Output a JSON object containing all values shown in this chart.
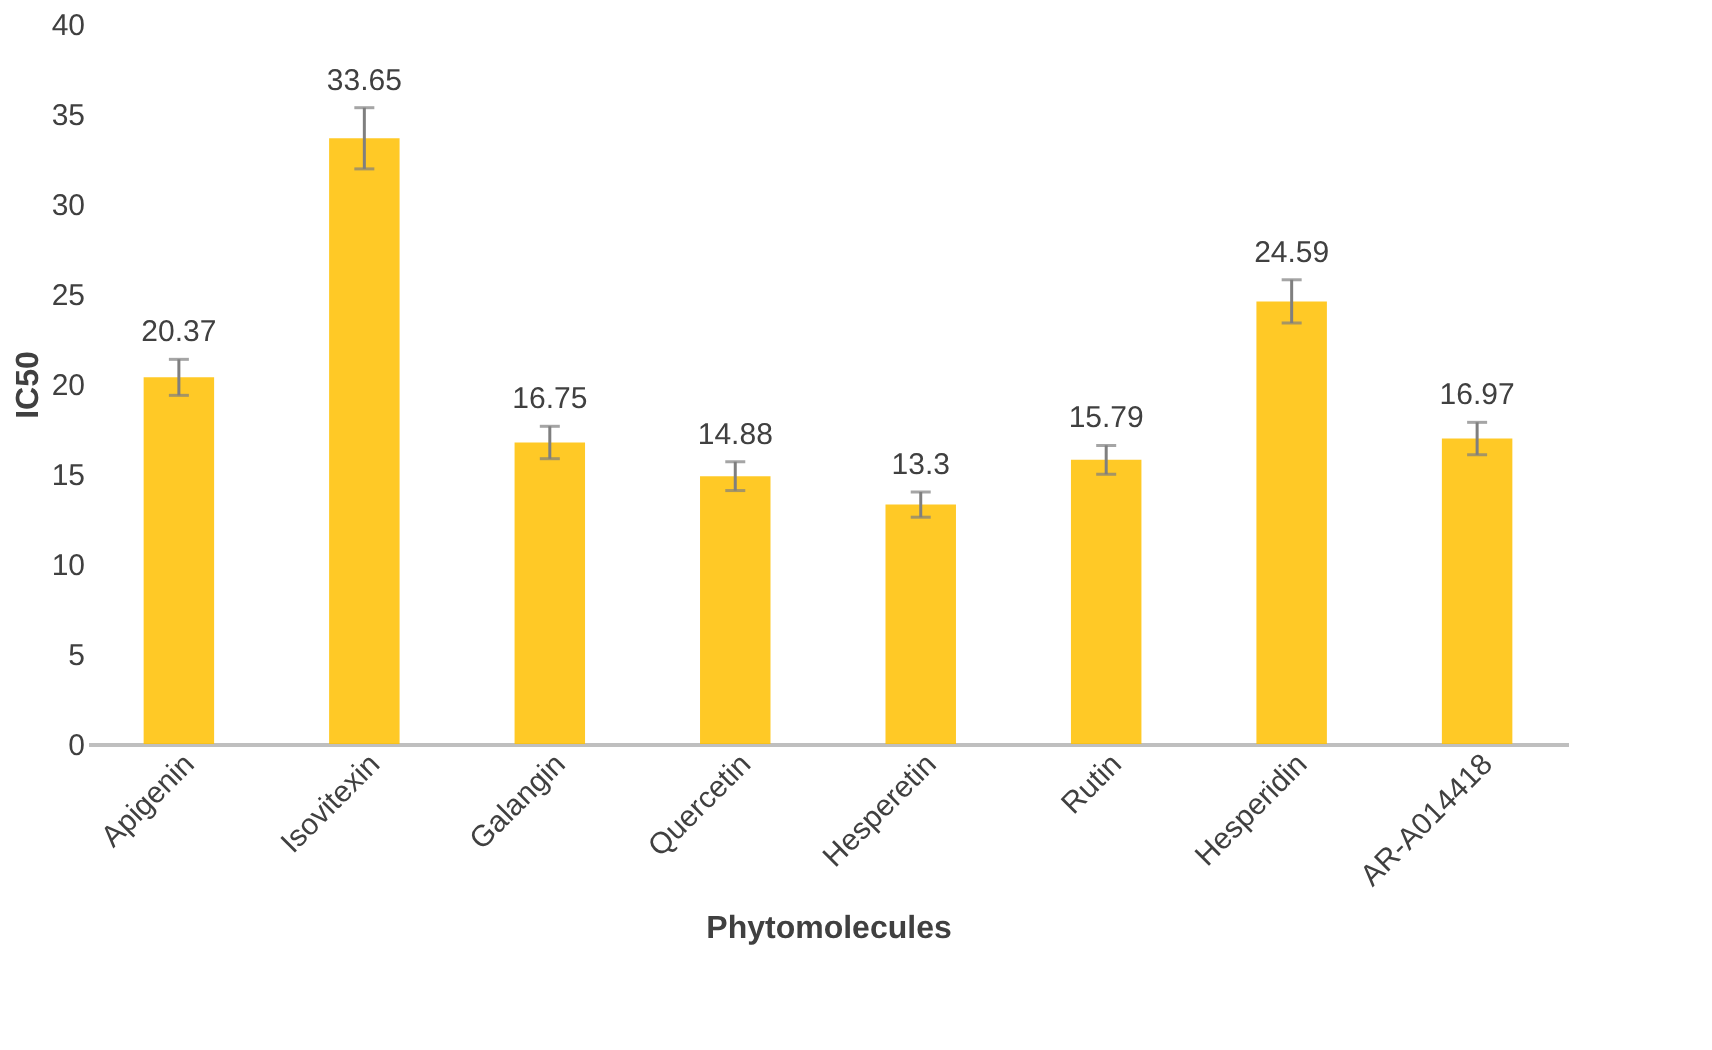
{
  "chart_data": {
    "type": "bar",
    "xlabel": "Phytomolecules",
    "ylabel": "IC50",
    "categories": [
      "Apigenin",
      "Isovitexin",
      "Galangin",
      "Quercetin",
      "Hesperetin",
      "Rutin",
      "Hesperidin",
      "AR-A014418"
    ],
    "values": [
      20.37,
      33.65,
      16.75,
      14.88,
      13.3,
      15.79,
      24.59,
      16.97
    ],
    "errors": [
      1.0,
      1.7,
      0.9,
      0.8,
      0.7,
      0.8,
      1.2,
      0.9
    ],
    "color": "#ffc000",
    "data_labels": true,
    "grid": false,
    "ylim": [
      0,
      40
    ],
    "yticks": [
      0,
      5,
      10,
      15,
      20,
      25,
      30,
      35,
      40
    ]
  }
}
